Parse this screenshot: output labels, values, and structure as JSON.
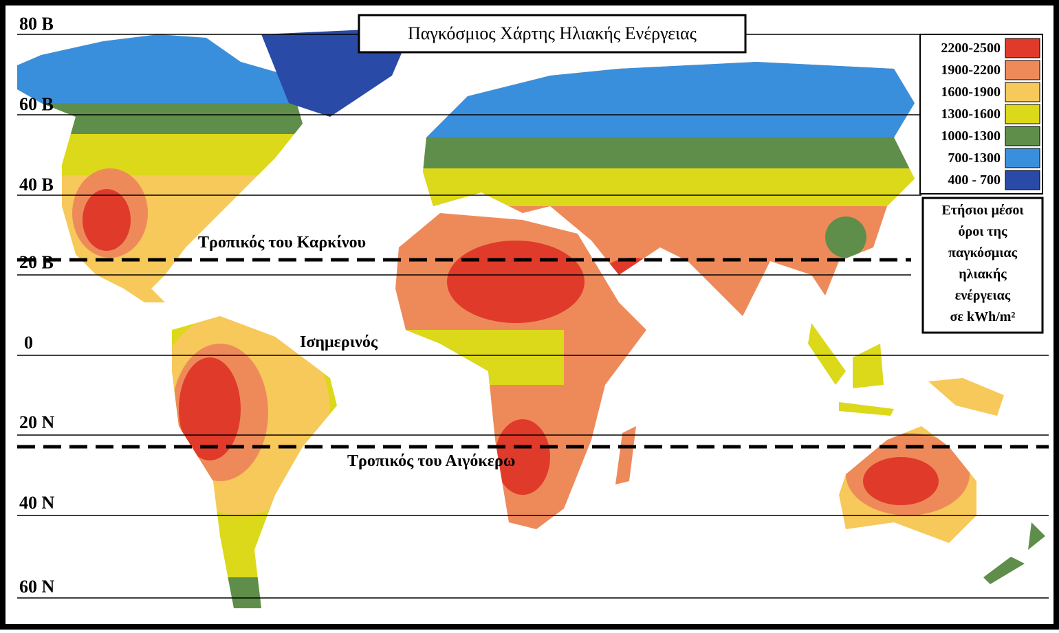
{
  "title": "Παγκόσμιος Χάρτης Ηλιακής Ενέργειας",
  "latitudes": [
    "80 Β",
    "60 Β",
    "40 Β",
    "20 Β",
    "0",
    "20 Ν",
    "40 Ν",
    "60 Ν"
  ],
  "lines": {
    "cancer": "Τροπικός του Καρκίνου",
    "equator": "Ισημερινός",
    "capricorn": "Τροπικός του Αιγόκερω"
  },
  "legend": {
    "items": [
      {
        "label": "2200-2500",
        "color": "#e03a2a"
      },
      {
        "label": "1900-2200",
        "color": "#ee8a5a"
      },
      {
        "label": "1600-1900",
        "color": "#f7c85a"
      },
      {
        "label": "1300-1600",
        "color": "#dcd81a"
      },
      {
        "label": "1000-1300",
        "color": "#5e8e4a"
      },
      {
        "label": "700-1300",
        "color": "#3a8fdc"
      },
      {
        "label": "400 - 700",
        "color": "#2a4aa8"
      }
    ],
    "caption": [
      "Ετήσιοι μέσοι",
      "όροι της",
      "παγκόσμιας",
      "ηλιακής",
      "ενέργειας",
      "σε kWh/m²"
    ]
  }
}
